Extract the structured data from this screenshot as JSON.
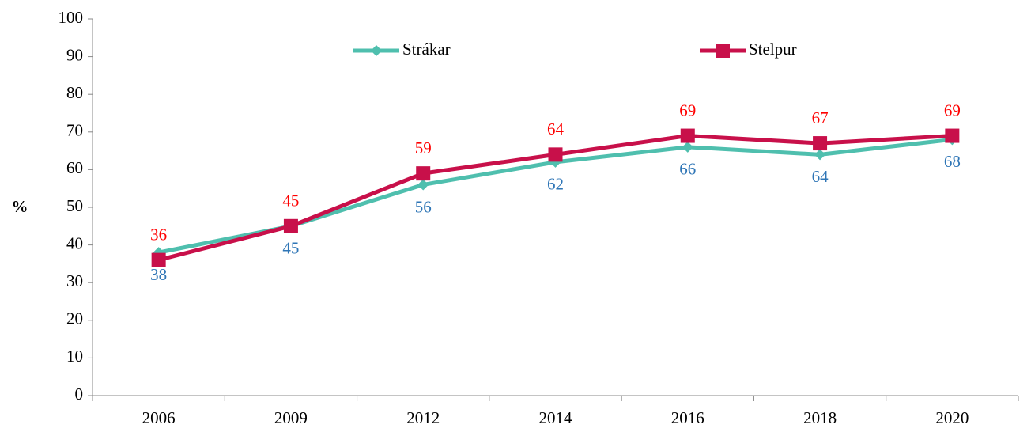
{
  "chart_data": {
    "type": "line",
    "y_label": "%",
    "categories": [
      "2006",
      "2009",
      "2012",
      "2014",
      "2016",
      "2018",
      "2020"
    ],
    "series": [
      {
        "name": "Strákar",
        "color": "#4fbfae",
        "marker": "diamond",
        "label_color": "#2e75b6",
        "label_position": "below",
        "values": [
          38,
          45,
          56,
          62,
          66,
          64,
          68
        ]
      },
      {
        "name": "Stelpur",
        "color": "#c8104a",
        "marker": "square",
        "label_color": "#ff0000",
        "label_position": "above",
        "values": [
          36,
          45,
          59,
          64,
          69,
          67,
          69
        ]
      }
    ],
    "ylim": [
      0,
      100
    ],
    "yticks": [
      0,
      10,
      20,
      30,
      40,
      50,
      60,
      70,
      80,
      90,
      100
    ],
    "grid": false
  }
}
